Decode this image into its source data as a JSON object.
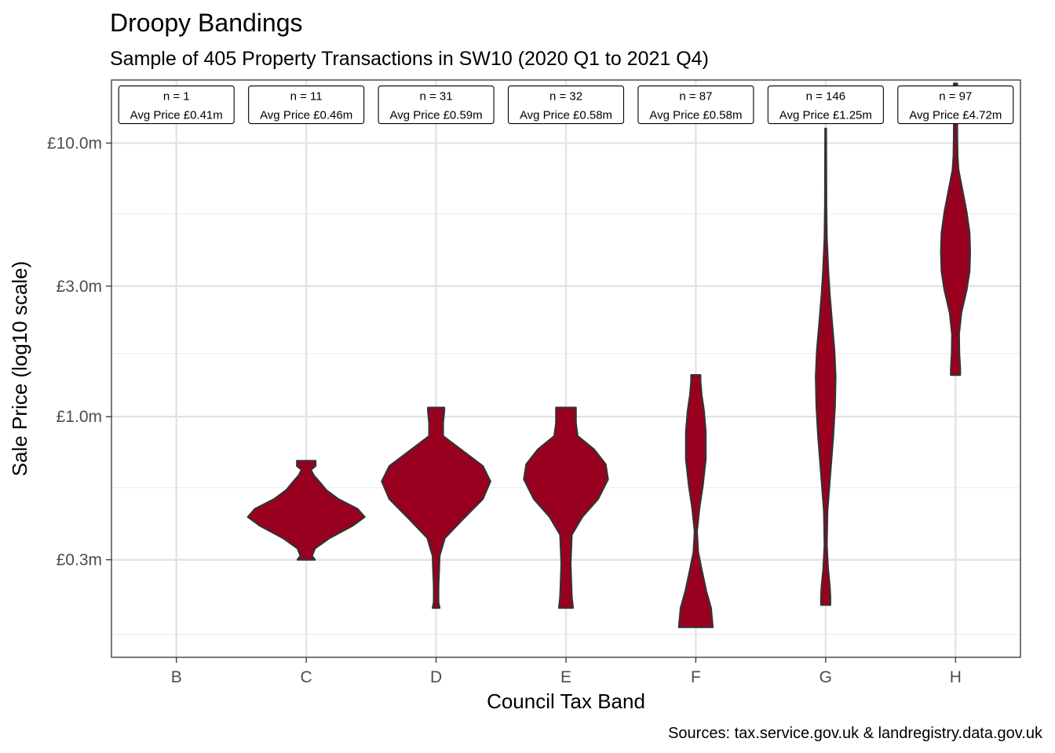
{
  "chart_data": {
    "type": "violin",
    "title": "Droopy Bandings",
    "subtitle": "Sample of 405 Property Transactions in SW10 (2020 Q1 to 2021 Q4)",
    "caption": "Sources: tax.service.gov.uk & landregistry.data.gov.uk",
    "xlabel": "Council Tax Band",
    "ylabel": "Sale Price (log10 scale)",
    "y_scale": "log10",
    "y_unit": "£m",
    "ylim": [
      0.132,
      17.0
    ],
    "y_ticks": [
      {
        "value": 0.3,
        "label": "£0.3m"
      },
      {
        "value": 1.0,
        "label": "£1.0m"
      },
      {
        "value": 3.0,
        "label": "£3.0m"
      },
      {
        "value": 10.0,
        "label": "£10.0m"
      }
    ],
    "y_minor_ticks": [
      0.16,
      0.55,
      1.7,
      5.5
    ],
    "categories": [
      "B",
      "C",
      "D",
      "E",
      "F",
      "G",
      "H"
    ],
    "grid": true,
    "fill_color": "#990020",
    "outline_color": "#333333",
    "annotation_y": 13.8,
    "groups": [
      {
        "band": "B",
        "n_label": "n = 1",
        "avg_label": "Avg Price £0.41m",
        "n": 1,
        "avg_price": 0.41,
        "violin": []
      },
      {
        "band": "C",
        "n_label": "n = 11",
        "avg_label": "Avg Price £0.46m",
        "n": 11,
        "avg_price": 0.46,
        "violin": [
          [
            0.3,
            0.15
          ],
          [
            0.31,
            0.1
          ],
          [
            0.33,
            0.15
          ],
          [
            0.36,
            0.4
          ],
          [
            0.4,
            0.8
          ],
          [
            0.43,
            1.0
          ],
          [
            0.46,
            0.88
          ],
          [
            0.5,
            0.55
          ],
          [
            0.54,
            0.34
          ],
          [
            0.58,
            0.22
          ],
          [
            0.61,
            0.13
          ],
          [
            0.64,
            0.08
          ],
          [
            0.66,
            0.16
          ],
          [
            0.69,
            0.16
          ]
        ]
      },
      {
        "band": "D",
        "n_label": "n = 31",
        "avg_label": "Avg Price £0.59m",
        "n": 31,
        "avg_price": 0.59,
        "violin": [
          [
            0.2,
            0.06
          ],
          [
            0.21,
            0.04
          ],
          [
            0.24,
            0.04
          ],
          [
            0.27,
            0.05
          ],
          [
            0.31,
            0.06
          ],
          [
            0.36,
            0.15
          ],
          [
            0.42,
            0.45
          ],
          [
            0.5,
            0.8
          ],
          [
            0.58,
            0.93
          ],
          [
            0.66,
            0.8
          ],
          [
            0.76,
            0.42
          ],
          [
            0.85,
            0.12
          ],
          [
            0.95,
            0.12
          ],
          [
            1.05,
            0.14
          ],
          [
            1.08,
            0.14
          ]
        ]
      },
      {
        "band": "E",
        "n_label": "n = 32",
        "avg_label": "Avg Price £0.58m",
        "n": 32,
        "avg_price": 0.58,
        "violin": [
          [
            0.2,
            0.12
          ],
          [
            0.22,
            0.1
          ],
          [
            0.25,
            0.09
          ],
          [
            0.29,
            0.08
          ],
          [
            0.33,
            0.09
          ],
          [
            0.37,
            0.1
          ],
          [
            0.43,
            0.28
          ],
          [
            0.5,
            0.55
          ],
          [
            0.59,
            0.72
          ],
          [
            0.67,
            0.68
          ],
          [
            0.76,
            0.48
          ],
          [
            0.85,
            0.2
          ],
          [
            0.95,
            0.17
          ],
          [
            1.05,
            0.17
          ],
          [
            1.08,
            0.17
          ]
        ]
      },
      {
        "band": "F",
        "n_label": "n = 87",
        "avg_label": "Avg Price £0.58m",
        "n": 87,
        "avg_price": 0.58,
        "violin": [
          [
            0.17,
            0.29
          ],
          [
            0.18,
            0.28
          ],
          [
            0.2,
            0.26
          ],
          [
            0.23,
            0.18
          ],
          [
            0.27,
            0.11
          ],
          [
            0.32,
            0.04
          ],
          [
            0.38,
            0.02
          ],
          [
            0.46,
            0.06
          ],
          [
            0.56,
            0.12
          ],
          [
            0.7,
            0.17
          ],
          [
            0.88,
            0.17
          ],
          [
            1.05,
            0.14
          ],
          [
            1.2,
            0.1
          ],
          [
            1.35,
            0.08
          ],
          [
            1.42,
            0.08
          ]
        ]
      },
      {
        "band": "G",
        "n_label": "n = 146",
        "avg_label": "Avg Price £1.25m",
        "n": 146,
        "avg_price": 1.25,
        "violin": [
          [
            0.205,
            0.08
          ],
          [
            0.22,
            0.08
          ],
          [
            0.24,
            0.07
          ],
          [
            0.28,
            0.04
          ],
          [
            0.34,
            0.02
          ],
          [
            0.45,
            0.03
          ],
          [
            0.62,
            0.08
          ],
          [
            0.85,
            0.13
          ],
          [
            1.1,
            0.16
          ],
          [
            1.4,
            0.17
          ],
          [
            1.75,
            0.15
          ],
          [
            2.2,
            0.11
          ],
          [
            2.8,
            0.07
          ],
          [
            3.4,
            0.045
          ],
          [
            4.5,
            0.02
          ],
          [
            6.0,
            0.012
          ],
          [
            8.5,
            0.01
          ],
          [
            11.3,
            0.008
          ]
        ]
      },
      {
        "band": "H",
        "n_label": "n = 97",
        "avg_label": "Avg Price £4.72m",
        "n": 97,
        "avg_price": 4.72,
        "violin": [
          [
            1.42,
            0.08
          ],
          [
            1.5,
            0.08
          ],
          [
            1.7,
            0.065
          ],
          [
            2.0,
            0.06
          ],
          [
            2.4,
            0.1
          ],
          [
            2.9,
            0.19
          ],
          [
            3.4,
            0.24
          ],
          [
            4.0,
            0.25
          ],
          [
            4.7,
            0.24
          ],
          [
            5.6,
            0.19
          ],
          [
            6.7,
            0.12
          ],
          [
            8.0,
            0.05
          ],
          [
            9.0,
            0.035
          ],
          [
            10.5,
            0.03
          ],
          [
            12.5,
            0.028
          ],
          [
            15.0,
            0.025
          ],
          [
            16.5,
            0.03
          ]
        ]
      }
    ]
  }
}
